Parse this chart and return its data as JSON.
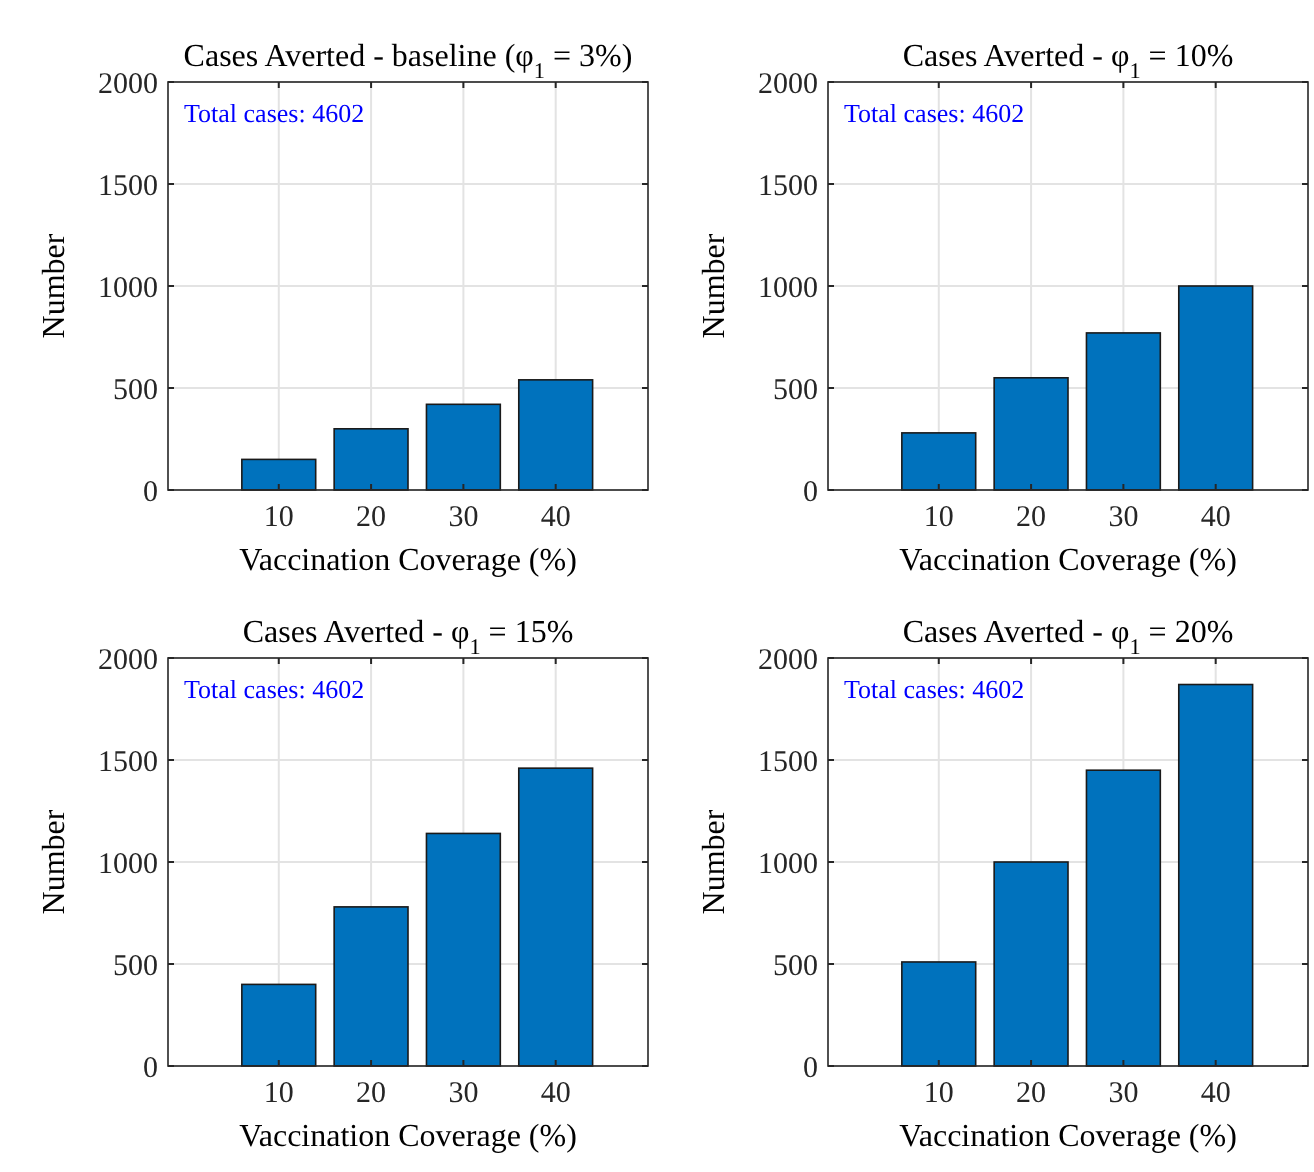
{
  "chart_data": [
    {
      "type": "bar",
      "title": "Cases Averted - baseline (φ$_{1}$ = 3%)",
      "xlabel": "Vaccination Coverage (%)",
      "ylabel": "Number",
      "x": [
        10,
        20,
        30,
        40
      ],
      "values": [
        150,
        300,
        420,
        540
      ],
      "color": "#0072bd",
      "xlim": [
        -2,
        50
      ],
      "xticks": [
        10,
        20,
        30,
        40
      ],
      "ylim": [
        0,
        2000
      ],
      "yticks": [
        0,
        500,
        1000,
        1500,
        2000
      ],
      "grid": true,
      "annotations": [
        "Total cases: 4602"
      ]
    },
    {
      "type": "bar",
      "title": "Cases Averted - φ$_{1}$ = 10%",
      "xlabel": "Vaccination Coverage (%)",
      "ylabel": "Number",
      "x": [
        10,
        20,
        30,
        40
      ],
      "values": [
        280,
        550,
        770,
        1000
      ],
      "color": "#0072bd",
      "xlim": [
        -2,
        50
      ],
      "xticks": [
        10,
        20,
        30,
        40
      ],
      "ylim": [
        0,
        2000
      ],
      "yticks": [
        0,
        500,
        1000,
        1500,
        2000
      ],
      "grid": true,
      "annotations": [
        "Total cases: 4602"
      ]
    },
    {
      "type": "bar",
      "title": "Cases Averted - φ$_{1}$ = 15%",
      "xlabel": "Vaccination Coverage (%)",
      "ylabel": "Number",
      "x": [
        10,
        20,
        30,
        40
      ],
      "values": [
        400,
        780,
        1140,
        1460
      ],
      "color": "#0072bd",
      "xlim": [
        -2,
        50
      ],
      "xticks": [
        10,
        20,
        30,
        40
      ],
      "ylim": [
        0,
        2000
      ],
      "yticks": [
        0,
        500,
        1000,
        1500,
        2000
      ],
      "grid": true,
      "annotations": [
        "Total cases: 4602"
      ]
    },
    {
      "type": "bar",
      "title": "Cases Averted - φ$_{1}$ = 20%",
      "xlabel": "Vaccination Coverage (%)",
      "ylabel": "Number",
      "x": [
        10,
        20,
        30,
        40
      ],
      "values": [
        510,
        1000,
        1450,
        1870
      ],
      "color": "#0072bd",
      "xlim": [
        -2,
        50
      ],
      "xticks": [
        10,
        20,
        30,
        40
      ],
      "ylim": [
        0,
        2000
      ],
      "yticks": [
        0,
        500,
        1000,
        1500,
        2000
      ],
      "grid": true,
      "annotations": [
        "Total cases: 4602"
      ]
    }
  ]
}
